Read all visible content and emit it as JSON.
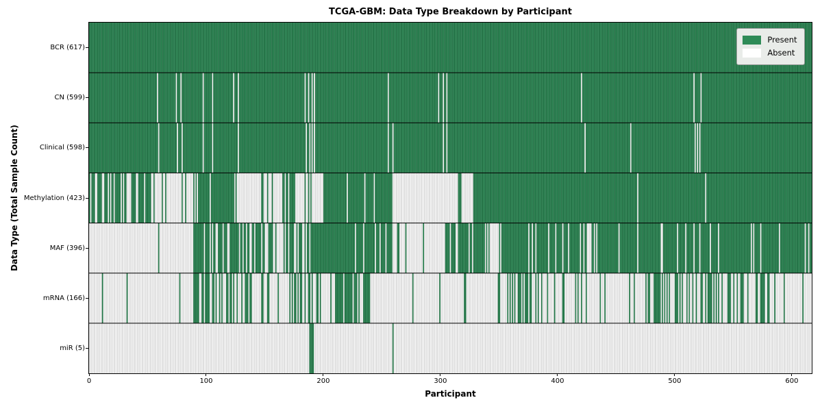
{
  "chart_data": {
    "type": "heatmap",
    "title": "TCGA-GBM: Data Type Breakdown by Participant",
    "xlabel": "Participant",
    "ylabel": "Data Type (Total Sample Count)",
    "x_ticks": [
      0,
      100,
      200,
      300,
      400,
      500,
      600
    ],
    "n_participants": 617,
    "grid": false,
    "legend": {
      "position": "upper right",
      "entries": [
        {
          "label": "Present",
          "color": "#2e8b57"
        },
        {
          "label": "Absent",
          "color": "#ffffff"
        }
      ]
    },
    "colors": {
      "present": "#2e8b57",
      "absent": "#ffffff",
      "present_edge": "rgba(0,0,0,0.45)",
      "absent_edge": "rgba(0,0,0,0.35)",
      "separator": "#000000"
    },
    "rows": [
      {
        "label": "BCR (617)",
        "name": "BCR",
        "count": 617,
        "pattern": {
          "base": "present",
          "exceptions": []
        }
      },
      {
        "label": "CN (599)",
        "name": "CN",
        "count": 599,
        "pattern": {
          "base": "present",
          "exceptions": [
            58,
            74,
            78,
            97,
            105,
            123,
            127,
            184,
            187,
            190,
            192,
            255,
            298,
            302,
            305,
            420,
            516,
            522
          ]
        }
      },
      {
        "label": "Clinical (598)",
        "name": "Clinical",
        "count": 598,
        "pattern": {
          "base": "present",
          "exceptions": [
            59,
            75,
            79,
            97,
            105,
            127,
            185,
            188,
            190,
            192,
            255,
            259,
            302,
            305,
            423,
            462,
            517,
            519,
            521
          ]
        }
      },
      {
        "label": "Methylation (423)",
        "name": "Methylation",
        "count": 423,
        "pattern": {
          "base": "segments",
          "segments": [
            {
              "from": 0,
              "to": 45,
              "state": "mixed",
              "fraction": 0.78
            },
            {
              "from": 45,
              "to": 59,
              "state": "mixed",
              "fraction": 0.5
            },
            {
              "from": 59,
              "to": 89,
              "state": "mixed",
              "fraction": 0.1
            },
            {
              "from": 89,
              "to": 124,
              "state": "mixed",
              "fraction": 0.85
            },
            {
              "from": 124,
              "to": 164,
              "state": "mixed",
              "fraction": 0.2
            },
            {
              "from": 164,
              "to": 176,
              "state": "mixed",
              "fraction": 0.7
            },
            {
              "from": 176,
              "to": 190,
              "state": "mixed",
              "fraction": 0.15
            },
            {
              "from": 190,
              "to": 200,
              "state": "absent"
            },
            {
              "from": 200,
              "to": 259,
              "state": "mixed",
              "fraction": 0.93
            },
            {
              "from": 259,
              "to": 310,
              "state": "mixed",
              "fraction": 0.03
            },
            {
              "from": 310,
              "to": 315,
              "state": "absent"
            },
            {
              "from": 315,
              "to": 318,
              "state": "present"
            },
            {
              "from": 318,
              "to": 328,
              "state": "absent"
            },
            {
              "from": 328,
              "to": 617,
              "state": "mixed",
              "fraction": 0.985
            }
          ]
        }
      },
      {
        "label": "MAF (396)",
        "name": "MAF",
        "count": 396,
        "pattern": {
          "base": "segments",
          "segments": [
            {
              "from": 0,
              "to": 89,
              "state": "mixed",
              "fraction": 0.05
            },
            {
              "from": 89,
              "to": 103,
              "state": "mixed",
              "fraction": 0.9
            },
            {
              "from": 103,
              "to": 119,
              "state": "mixed",
              "fraction": 0.5
            },
            {
              "from": 119,
              "to": 138,
              "state": "mixed",
              "fraction": 0.6
            },
            {
              "from": 138,
              "to": 156,
              "state": "mixed",
              "fraction": 0.75
            },
            {
              "from": 156,
              "to": 168,
              "state": "mixed",
              "fraction": 0.3
            },
            {
              "from": 168,
              "to": 190,
              "state": "mixed",
              "fraction": 0.55
            },
            {
              "from": 190,
              "to": 259,
              "state": "mixed",
              "fraction": 0.92
            },
            {
              "from": 259,
              "to": 304,
              "state": "mixed",
              "fraction": 0.08
            },
            {
              "from": 304,
              "to": 342,
              "state": "mixed",
              "fraction": 0.8
            },
            {
              "from": 342,
              "to": 352,
              "state": "mixed",
              "fraction": 0.2
            },
            {
              "from": 352,
              "to": 425,
              "state": "mixed",
              "fraction": 0.9
            },
            {
              "from": 425,
              "to": 434,
              "state": "mixed",
              "fraction": 0.3
            },
            {
              "from": 434,
              "to": 617,
              "state": "mixed",
              "fraction": 0.93
            }
          ]
        }
      },
      {
        "label": "mRNA (166)",
        "name": "mRNA",
        "count": 166,
        "pattern": {
          "base": "segments",
          "segments": [
            {
              "from": 0,
              "to": 89,
              "state": "mixed",
              "fraction": 0.03
            },
            {
              "from": 89,
              "to": 111,
              "state": "mixed",
              "fraction": 0.6
            },
            {
              "from": 111,
              "to": 154,
              "state": "mixed",
              "fraction": 0.35
            },
            {
              "from": 154,
              "to": 178,
              "state": "mixed",
              "fraction": 0.15
            },
            {
              "from": 178,
              "to": 198,
              "state": "mixed",
              "fraction": 0.55
            },
            {
              "from": 198,
              "to": 212,
              "state": "mixed",
              "fraction": 0.2
            },
            {
              "from": 212,
              "to": 240,
              "state": "mixed",
              "fraction": 0.7
            },
            {
              "from": 240,
              "to": 263,
              "state": "absent"
            },
            {
              "from": 263,
              "to": 310,
              "state": "mixed",
              "fraction": 0.08
            },
            {
              "from": 310,
              "to": 350,
              "state": "mixed",
              "fraction": 0.12
            },
            {
              "from": 350,
              "to": 390,
              "state": "mixed",
              "fraction": 0.45
            },
            {
              "from": 390,
              "to": 445,
              "state": "mixed",
              "fraction": 0.35
            },
            {
              "from": 445,
              "to": 475,
              "state": "mixed",
              "fraction": 0.12
            },
            {
              "from": 475,
              "to": 535,
              "state": "mixed",
              "fraction": 0.55
            },
            {
              "from": 535,
              "to": 575,
              "state": "mixed",
              "fraction": 0.3
            },
            {
              "from": 575,
              "to": 582,
              "state": "mixed",
              "fraction": 0.5
            },
            {
              "from": 582,
              "to": 617,
              "state": "mixed",
              "fraction": 0.05
            }
          ]
        }
      },
      {
        "label": "miR (5)",
        "name": "miR",
        "count": 5,
        "pattern": {
          "base": "absent",
          "exceptions": [
            188,
            189,
            190,
            191,
            259
          ]
        }
      }
    ]
  }
}
